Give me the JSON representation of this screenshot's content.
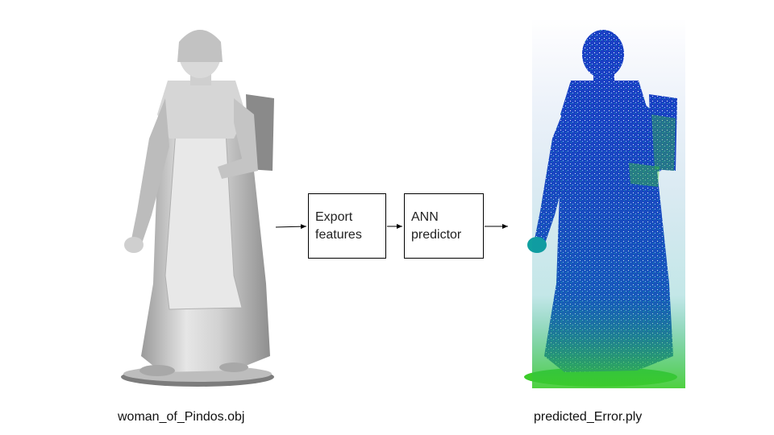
{
  "pipeline": {
    "input_caption": "woman_of_Pindos.obj",
    "steps": [
      {
        "line1": "Export",
        "line2": "features"
      },
      {
        "line1": "ANN",
        "line2": "predictor"
      }
    ],
    "output_caption": "predicted_Error.ply"
  },
  "colors": {
    "mesh_gray": "#c8c8c8",
    "error_low": "#1a3fc4",
    "error_mid": "#10a0a0",
    "error_high": "#3ccc2a"
  }
}
